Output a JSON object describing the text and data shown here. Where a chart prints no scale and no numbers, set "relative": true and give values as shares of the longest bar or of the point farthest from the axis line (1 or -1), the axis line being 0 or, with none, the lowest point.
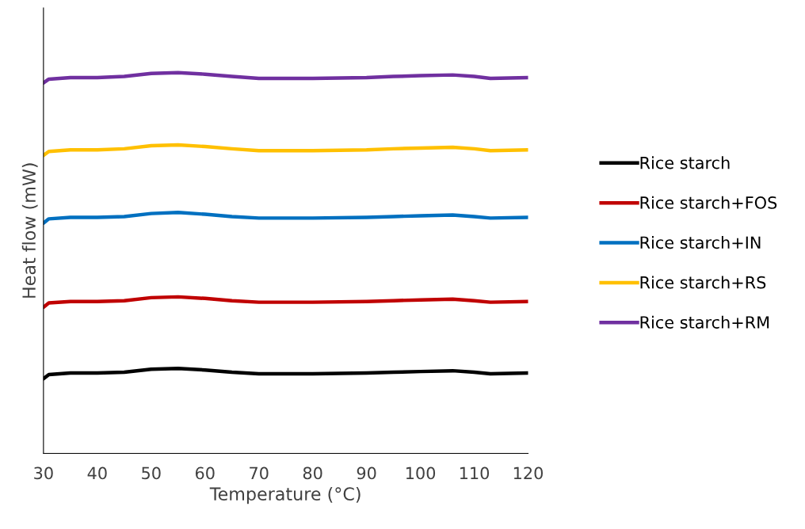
{
  "chart_data": {
    "type": "line",
    "relative": true,
    "xlabel": "Temperature (°C)",
    "ylabel": "Heat flow (mW)",
    "x": [
      30,
      31,
      35,
      40,
      45,
      50,
      55,
      60,
      65,
      70,
      80,
      90,
      95,
      100,
      106,
      110,
      113,
      120
    ],
    "xlim": [
      30,
      120
    ],
    "xticks": [
      30,
      40,
      50,
      60,
      70,
      80,
      90,
      100,
      110,
      120
    ],
    "tick_labels": "x",
    "grid": false,
    "legend": "right",
    "series": [
      {
        "name": "Rice starch",
        "color": "#000000",
        "values": [
          0.196,
          0.207,
          0.211,
          0.211,
          0.213,
          0.221,
          0.223,
          0.219,
          0.213,
          0.209,
          0.209,
          0.211,
          0.213,
          0.215,
          0.217,
          0.213,
          0.209,
          0.211
        ]
      },
      {
        "name": "Rice starch+FOS",
        "color": "#c00000",
        "values": [
          0.384,
          0.395,
          0.399,
          0.399,
          0.401,
          0.409,
          0.411,
          0.407,
          0.401,
          0.397,
          0.397,
          0.399,
          0.401,
          0.403,
          0.405,
          0.401,
          0.397,
          0.399
        ]
      },
      {
        "name": "Rice starch+IN",
        "color": "#0070c0",
        "values": [
          0.605,
          0.616,
          0.62,
          0.62,
          0.622,
          0.63,
          0.633,
          0.628,
          0.622,
          0.618,
          0.618,
          0.62,
          0.622,
          0.624,
          0.626,
          0.622,
          0.618,
          0.62
        ]
      },
      {
        "name": "Rice starch+RS",
        "color": "#ffc000",
        "values": [
          0.783,
          0.793,
          0.797,
          0.797,
          0.8,
          0.808,
          0.81,
          0.806,
          0.8,
          0.795,
          0.795,
          0.797,
          0.8,
          0.802,
          0.804,
          0.8,
          0.795,
          0.797
        ]
      },
      {
        "name": "Rice starch+RM",
        "color": "#7030a0",
        "values": [
          0.973,
          0.983,
          0.987,
          0.987,
          0.99,
          0.998,
          1.0,
          0.996,
          0.99,
          0.985,
          0.985,
          0.987,
          0.99,
          0.992,
          0.994,
          0.99,
          0.985,
          0.987
        ]
      }
    ]
  }
}
